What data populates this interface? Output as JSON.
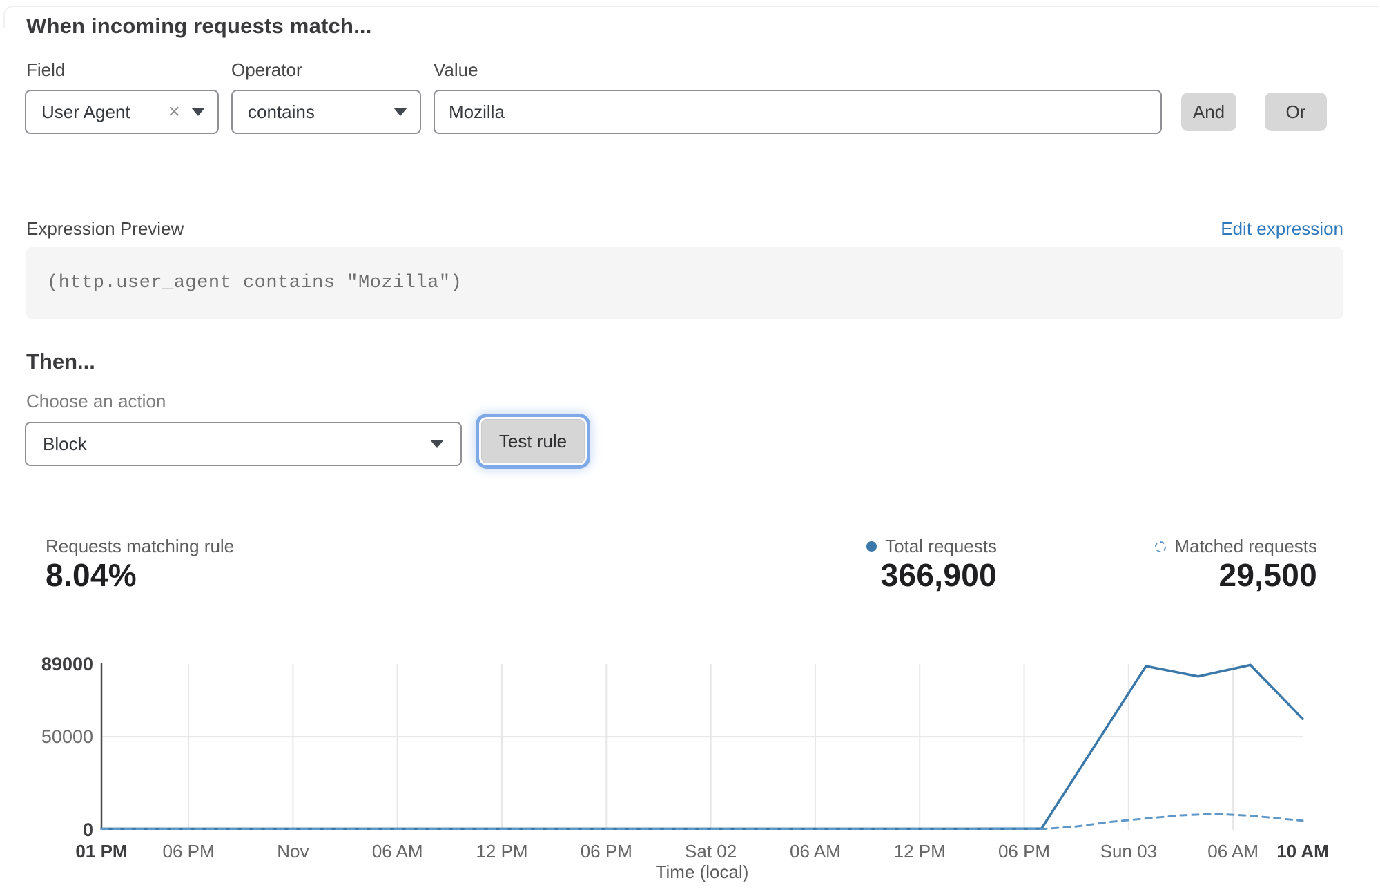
{
  "header": {
    "title": "When incoming requests match..."
  },
  "icons": {
    "clear": "×"
  },
  "colors": {
    "accent_link": "#2e79bc",
    "focus_ring": "#7fa9e6",
    "total_series": "#3a78a9",
    "matched_series": "#5f97c8"
  },
  "rule_builder": {
    "field": {
      "label": "Field",
      "value": "User Agent"
    },
    "operator": {
      "label": "Operator",
      "value": "contains"
    },
    "value": {
      "label": "Value",
      "value": "Mozilla"
    },
    "and_label": "And",
    "or_label": "Or"
  },
  "expression": {
    "label": "Expression Preview",
    "edit_link": "Edit expression",
    "code": "(http.user_agent contains \"Mozilla\")"
  },
  "action": {
    "heading": "Then...",
    "label": "Choose an action",
    "value": "Block",
    "test_button": "Test rule"
  },
  "stats": {
    "matching": {
      "label": "Requests matching rule",
      "value": "8.04%"
    },
    "total": {
      "label": "Total requests",
      "value": "366,900"
    },
    "matched": {
      "label": "Matched requests",
      "value": "29,500"
    }
  },
  "chart_data": {
    "type": "line",
    "title": "",
    "xlabel": "Time (local)",
    "ylabel": "",
    "grid": true,
    "ylim": [
      0,
      89000
    ],
    "x_hours": [
      0,
      69
    ],
    "yticks": [
      {
        "value": 89000,
        "label": "89000",
        "bold": true
      },
      {
        "value": 50000,
        "label": "50000",
        "bold": false
      },
      {
        "value": 0,
        "label": "0",
        "bold": true
      }
    ],
    "xticks": [
      {
        "hour": 0,
        "label": "01 PM",
        "bold": true
      },
      {
        "hour": 5,
        "label": "06 PM",
        "bold": false
      },
      {
        "hour": 11,
        "label": "Nov",
        "bold": false
      },
      {
        "hour": 17,
        "label": "06 AM",
        "bold": false
      },
      {
        "hour": 23,
        "label": "12 PM",
        "bold": false
      },
      {
        "hour": 29,
        "label": "06 PM",
        "bold": false
      },
      {
        "hour": 35,
        "label": "Sat 02",
        "bold": false
      },
      {
        "hour": 41,
        "label": "06 AM",
        "bold": false
      },
      {
        "hour": 47,
        "label": "12 PM",
        "bold": false
      },
      {
        "hour": 53,
        "label": "06 PM",
        "bold": false
      },
      {
        "hour": 59,
        "label": "Sun 03",
        "bold": false
      },
      {
        "hour": 65,
        "label": "06 AM",
        "bold": false
      },
      {
        "hour": 69,
        "label": "10 AM",
        "bold": true
      }
    ],
    "series": [
      {
        "name": "Total requests",
        "style": "solid",
        "color": "#3a78a9",
        "points": [
          [
            0,
            600
          ],
          [
            6,
            600
          ],
          [
            12,
            600
          ],
          [
            18,
            600
          ],
          [
            24,
            600
          ],
          [
            30,
            600
          ],
          [
            36,
            600
          ],
          [
            42,
            600
          ],
          [
            48,
            600
          ],
          [
            54,
            700
          ],
          [
            60,
            87900
          ],
          [
            63,
            82400
          ],
          [
            66,
            88500
          ],
          [
            69,
            59600
          ]
        ]
      },
      {
        "name": "Matched requests",
        "style": "dashed",
        "color": "#5f97c8",
        "points": [
          [
            0,
            250
          ],
          [
            10,
            250
          ],
          [
            20,
            250
          ],
          [
            30,
            250
          ],
          [
            40,
            250
          ],
          [
            50,
            250
          ],
          [
            54,
            400
          ],
          [
            56,
            1800
          ],
          [
            58,
            4300
          ],
          [
            60,
            6100
          ],
          [
            62,
            7800
          ],
          [
            64,
            8600
          ],
          [
            66,
            7600
          ],
          [
            69,
            4900
          ]
        ]
      }
    ],
    "legend_position": "top-right"
  }
}
